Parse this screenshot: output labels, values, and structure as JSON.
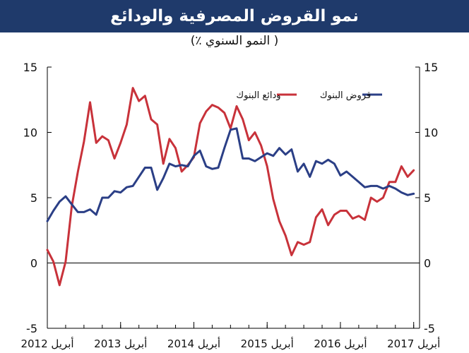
{
  "title": "نمو القروض المصرفية والودائع",
  "subtitle": "( النمو السنوي ٪)",
  "colors": {
    "title_bg": "#1f3a6b",
    "deposits": "#c8323a",
    "loans": "#2b3f86"
  },
  "chart_data": {
    "type": "line",
    "ylim": [
      -5,
      15
    ],
    "yticks": [
      -5,
      0,
      5,
      10,
      15
    ],
    "ytick_labels": [
      "-5",
      "0",
      "5",
      "10",
      "15"
    ],
    "xlim": [
      2012.25,
      2017.33
    ],
    "xticks": [
      2012.25,
      2013.25,
      2014.25,
      2015.25,
      2016.25,
      2017.25
    ],
    "xtick_labels": [
      "أبريل 2012",
      "أبريل 2013",
      "أبريل 2014",
      "أبريل 2015",
      "أبريل 2016",
      "أبريل 2017"
    ],
    "grid": false,
    "legend_position": "top",
    "series": [
      {
        "name": "ودائع البنوك",
        "color": "#c8323a",
        "x": [
          2012.25,
          2012.333,
          2012.417,
          2012.5,
          2012.583,
          2012.667,
          2012.75,
          2012.833,
          2012.917,
          2013.0,
          2013.083,
          2013.167,
          2013.25,
          2013.333,
          2013.417,
          2013.5,
          2013.583,
          2013.667,
          2013.75,
          2013.833,
          2013.917,
          2014.0,
          2014.083,
          2014.167,
          2014.25,
          2014.333,
          2014.417,
          2014.5,
          2014.583,
          2014.667,
          2014.75,
          2014.833,
          2014.917,
          2015.0,
          2015.083,
          2015.167,
          2015.25,
          2015.333,
          2015.417,
          2015.5,
          2015.583,
          2015.667,
          2015.75,
          2015.833,
          2015.917,
          2016.0,
          2016.083,
          2016.167,
          2016.25,
          2016.333,
          2016.417,
          2016.5,
          2016.583,
          2016.667,
          2016.75,
          2016.833,
          2016.917,
          2017.0,
          2017.083,
          2017.167,
          2017.25
        ],
        "values": [
          1.0,
          0.1,
          -1.7,
          0.1,
          4.3,
          7.0,
          9.3,
          12.3,
          9.2,
          9.7,
          9.4,
          8.0,
          9.2,
          10.6,
          13.4,
          12.4,
          12.8,
          11.0,
          10.6,
          7.6,
          9.5,
          8.8,
          7.0,
          7.5,
          8.1,
          10.7,
          11.6,
          12.1,
          11.9,
          11.5,
          10.3,
          12.0,
          11.0,
          9.4,
          10.0,
          9.0,
          7.4,
          4.9,
          3.2,
          2.1,
          0.6,
          1.6,
          1.4,
          1.6,
          3.5,
          4.1,
          2.9,
          3.7,
          4.0,
          4.0,
          3.4,
          3.6,
          3.3,
          5.0,
          4.7,
          5.0,
          6.2,
          6.2,
          7.4,
          6.6,
          7.1
        ]
      },
      {
        "name": "قروض البنوك",
        "color": "#2b3f86",
        "x": [
          2012.25,
          2012.333,
          2012.417,
          2012.5,
          2012.583,
          2012.667,
          2012.75,
          2012.833,
          2012.917,
          2013.0,
          2013.083,
          2013.167,
          2013.25,
          2013.333,
          2013.417,
          2013.5,
          2013.583,
          2013.667,
          2013.75,
          2013.833,
          2013.917,
          2014.0,
          2014.083,
          2014.167,
          2014.25,
          2014.333,
          2014.417,
          2014.5,
          2014.583,
          2014.667,
          2014.75,
          2014.833,
          2014.917,
          2015.0,
          2015.083,
          2015.167,
          2015.25,
          2015.333,
          2015.417,
          2015.5,
          2015.583,
          2015.667,
          2015.75,
          2015.833,
          2015.917,
          2016.0,
          2016.083,
          2016.167,
          2016.25,
          2016.333,
          2016.417,
          2016.5,
          2016.583,
          2016.667,
          2016.75,
          2016.833,
          2016.917,
          2017.0,
          2017.083,
          2017.167,
          2017.25
        ],
        "values": [
          3.2,
          4.0,
          4.7,
          5.1,
          4.5,
          3.9,
          3.9,
          4.1,
          3.7,
          5.0,
          5.0,
          5.5,
          5.4,
          5.8,
          5.9,
          6.6,
          7.3,
          7.3,
          5.6,
          6.5,
          7.6,
          7.4,
          7.5,
          7.4,
          8.2,
          8.6,
          7.4,
          7.2,
          7.3,
          8.8,
          10.2,
          10.3,
          8.0,
          8.0,
          7.8,
          8.1,
          8.4,
          8.2,
          8.8,
          8.3,
          8.7,
          7.0,
          7.6,
          6.6,
          7.8,
          7.6,
          7.9,
          7.6,
          6.7,
          7.0,
          6.6,
          6.2,
          5.8,
          5.9,
          5.9,
          5.7,
          5.9,
          5.7,
          5.4,
          5.2,
          5.3
        ]
      }
    ]
  }
}
